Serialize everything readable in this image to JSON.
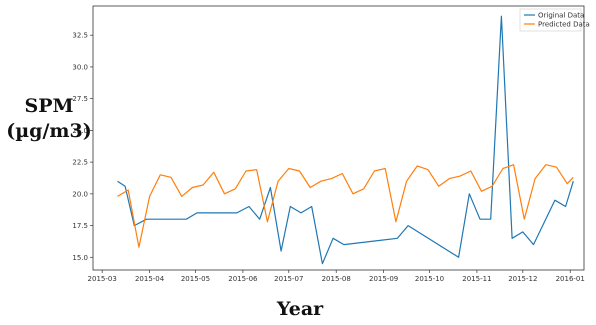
{
  "chart_data": {
    "type": "line",
    "title": "",
    "xlabel": "Year",
    "ylabel_line1": "SPM",
    "ylabel_line2": "(µg/m3)",
    "x_ticks": [
      "2015-03",
      "2015-04",
      "2015-05",
      "2015-06",
      "2015-07",
      "2015-08",
      "2015-09",
      "2015-10",
      "2015-11",
      "2015-12",
      "2016-01"
    ],
    "x_range": [
      "2015-02-23",
      "2016-01-10"
    ],
    "y_ticks": [
      "15.0",
      "17.5",
      "20.0",
      "22.5",
      "25.0",
      "27.5",
      "30.0",
      "32.5"
    ],
    "ylim": [
      14.0,
      34.8
    ],
    "grid": false,
    "legend_position": "top-right",
    "colors": {
      "original": "#1f77b4",
      "predicted": "#ff7f0e"
    },
    "series": [
      {
        "name": "Original Data",
        "points": [
          [
            "2015-03-11",
            21.0
          ],
          [
            "2015-03-16",
            20.6
          ],
          [
            "2015-03-22",
            17.5
          ],
          [
            "2015-03-30",
            18.0
          ],
          [
            "2015-04-09",
            18.0
          ],
          [
            "2015-04-25",
            18.0
          ],
          [
            "2015-05-02",
            18.5
          ],
          [
            "2015-05-19",
            18.5
          ],
          [
            "2015-05-28",
            18.5
          ],
          [
            "2015-06-05",
            19.0
          ],
          [
            "2015-06-12",
            18.0
          ],
          [
            "2015-06-19",
            20.5
          ],
          [
            "2015-06-26",
            15.5
          ],
          [
            "2015-07-02",
            19.0
          ],
          [
            "2015-07-09",
            18.5
          ],
          [
            "2015-07-16",
            19.0
          ],
          [
            "2015-07-23",
            14.5
          ],
          [
            "2015-07-30",
            16.5
          ],
          [
            "2015-08-06",
            16.0
          ],
          [
            "2015-09-10",
            16.5
          ],
          [
            "2015-09-17",
            17.5
          ],
          [
            "2015-10-20",
            15.0
          ],
          [
            "2015-10-27",
            20.0
          ],
          [
            "2015-11-03",
            18.0
          ],
          [
            "2015-11-10",
            18.0
          ],
          [
            "2015-11-17",
            34.0
          ],
          [
            "2015-11-24",
            16.5
          ],
          [
            "2015-12-01",
            17.0
          ],
          [
            "2015-12-08",
            16.0
          ],
          [
            "2015-12-22",
            19.5
          ],
          [
            "2015-12-29",
            19.0
          ],
          [
            "2016-01-03",
            21.0
          ]
        ]
      },
      {
        "name": "Predicted Data",
        "points": [
          [
            "2015-03-11",
            19.8
          ],
          [
            "2015-03-18",
            20.3
          ],
          [
            "2015-03-25",
            15.8
          ],
          [
            "2015-04-01",
            19.8
          ],
          [
            "2015-04-08",
            21.5
          ],
          [
            "2015-04-15",
            21.3
          ],
          [
            "2015-04-22",
            19.8
          ],
          [
            "2015-04-29",
            20.5
          ],
          [
            "2015-05-06",
            20.7
          ],
          [
            "2015-05-13",
            21.7
          ],
          [
            "2015-05-20",
            20.0
          ],
          [
            "2015-05-27",
            20.4
          ],
          [
            "2015-06-03",
            21.8
          ],
          [
            "2015-06-10",
            21.9
          ],
          [
            "2015-06-17",
            17.8
          ],
          [
            "2015-06-24",
            21.0
          ],
          [
            "2015-07-01",
            22.0
          ],
          [
            "2015-07-08",
            21.8
          ],
          [
            "2015-07-15",
            20.5
          ],
          [
            "2015-07-22",
            21.0
          ],
          [
            "2015-07-29",
            21.2
          ],
          [
            "2015-08-05",
            21.6
          ],
          [
            "2015-08-12",
            20.0
          ],
          [
            "2015-08-19",
            20.4
          ],
          [
            "2015-08-26",
            21.8
          ],
          [
            "2015-09-02",
            22.0
          ],
          [
            "2015-09-09",
            17.8
          ],
          [
            "2015-09-16",
            21.0
          ],
          [
            "2015-09-23",
            22.2
          ],
          [
            "2015-09-30",
            21.9
          ],
          [
            "2015-10-07",
            20.6
          ],
          [
            "2015-10-14",
            21.2
          ],
          [
            "2015-10-21",
            21.4
          ],
          [
            "2015-10-28",
            21.8
          ],
          [
            "2015-11-04",
            20.2
          ],
          [
            "2015-11-11",
            20.6
          ],
          [
            "2015-11-18",
            22.0
          ],
          [
            "2015-11-25",
            22.3
          ],
          [
            "2015-12-02",
            18.0
          ],
          [
            "2015-12-09",
            21.2
          ],
          [
            "2015-12-16",
            22.3
          ],
          [
            "2015-12-23",
            22.1
          ],
          [
            "2015-12-30",
            20.8
          ],
          [
            "2016-01-03",
            21.3
          ]
        ]
      }
    ]
  }
}
